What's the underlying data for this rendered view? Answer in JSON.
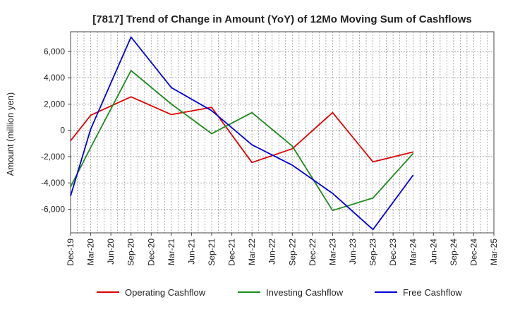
{
  "chart_data": {
    "type": "line",
    "title": "[7817]  Trend of Change in Amount (YoY) of 12Mo Moving Sum of Cashflows",
    "xlabel": "",
    "ylabel": "Amount (million yen)",
    "ylim": [
      -7800,
      7500
    ],
    "yticks": [
      -6000,
      -4000,
      -2000,
      0,
      2000,
      4000,
      6000
    ],
    "ytick_labels": [
      "-6,000",
      "-4,000",
      "-2,000",
      "0",
      "2,000",
      "4,000",
      "6,000"
    ],
    "categories": [
      "Dec-19",
      "Mar-20",
      "Jun-20",
      "Sep-20",
      "Dec-20",
      "Mar-21",
      "Jun-21",
      "Sep-21",
      "Dec-21",
      "Mar-22",
      "Jun-22",
      "Sep-22",
      "Dec-22",
      "Mar-23",
      "Jun-23",
      "Sep-23",
      "Dec-23",
      "Mar-24",
      "Jun-24",
      "Sep-24",
      "Dec-24",
      "Mar-25"
    ],
    "grid": true,
    "legend_position": "bottom",
    "series": [
      {
        "name": "Operating Cashflow",
        "color": "#e00000",
        "values": [
          -800,
          1150,
          null,
          2550,
          null,
          1200,
          null,
          1750,
          null,
          -2450,
          null,
          -1400,
          null,
          1350,
          null,
          -2400,
          null,
          -1650,
          null,
          null,
          null,
          null
        ]
      },
      {
        "name": "Investing Cashflow",
        "color": "#1e8a1e",
        "values": [
          -4300,
          -1300,
          null,
          4550,
          null,
          2000,
          null,
          -250,
          null,
          1350,
          null,
          -1200,
          null,
          -6100,
          null,
          -5150,
          null,
          -1750,
          null,
          null,
          null,
          null
        ]
      },
      {
        "name": "Free Cashflow",
        "color": "#0000dd",
        "values": [
          -5000,
          100,
          null,
          7100,
          null,
          3250,
          null,
          1500,
          null,
          -1100,
          null,
          -2650,
          null,
          -4800,
          null,
          -7550,
          null,
          -3400,
          null,
          null,
          null,
          null
        ]
      }
    ]
  }
}
